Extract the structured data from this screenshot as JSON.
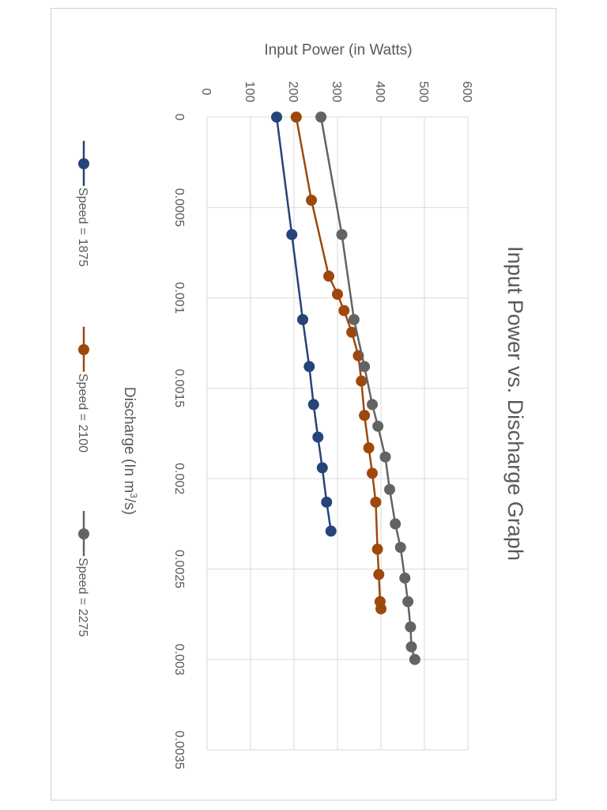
{
  "chart_data": {
    "type": "line",
    "orientation": "rotated 90 degrees clockwise",
    "title": "Input Power vs. Discharge Graph",
    "xlabel": "Discharge (In m",
    "xlabel_sup": "3",
    "xlabel_suffix": "/s)",
    "ylabel": "Input Power (in Watts)",
    "xlim": [
      0,
      0.0035
    ],
    "ylim": [
      0,
      600
    ],
    "x_ticks": [
      "0",
      "0.0005",
      "0.001",
      "0.0015",
      "0.002",
      "0.0025",
      "0.003",
      "0.0035"
    ],
    "x_tick_values": [
      0,
      0.0005,
      0.001,
      0.0015,
      0.002,
      0.0025,
      0.003,
      0.0035
    ],
    "y_ticks": [
      "0",
      "100",
      "200",
      "300",
      "400",
      "500",
      "600"
    ],
    "y_tick_values": [
      0,
      100,
      200,
      300,
      400,
      500,
      600
    ],
    "grid": true,
    "legend_position": "bottom",
    "series": [
      {
        "name": "Speed = 1875",
        "color": "#264478",
        "x": [
          0,
          0.00065,
          0.00112,
          0.00138,
          0.00159,
          0.00177,
          0.00194,
          0.00213,
          0.00229
        ],
        "y": [
          160,
          195,
          220,
          235,
          245,
          255,
          265,
          275,
          285
        ]
      },
      {
        "name": "Speed = 2100",
        "color": "#9E480E",
        "x": [
          0,
          0.00046,
          0.00088,
          0.00098,
          0.00107,
          0.00119,
          0.00132,
          0.00146,
          0.00165,
          0.00183,
          0.00197,
          0.00213,
          0.00239,
          0.00253,
          0.00268,
          0.00272
        ],
        "y": [
          205,
          240,
          280,
          300,
          315,
          333,
          348,
          355,
          362,
          372,
          380,
          388,
          392,
          395,
          398,
          400
        ]
      },
      {
        "name": "Speed = 2275",
        "color": "#636363",
        "x": [
          0,
          0.00065,
          0.00112,
          0.00138,
          0.00159,
          0.00171,
          0.00188,
          0.00206,
          0.00225,
          0.00238,
          0.00255,
          0.00268,
          0.00282,
          0.00293,
          0.003
        ],
        "y": [
          262,
          310,
          338,
          362,
          380,
          393,
          410,
          420,
          433,
          445,
          455,
          462,
          468,
          470,
          478
        ]
      }
    ]
  }
}
